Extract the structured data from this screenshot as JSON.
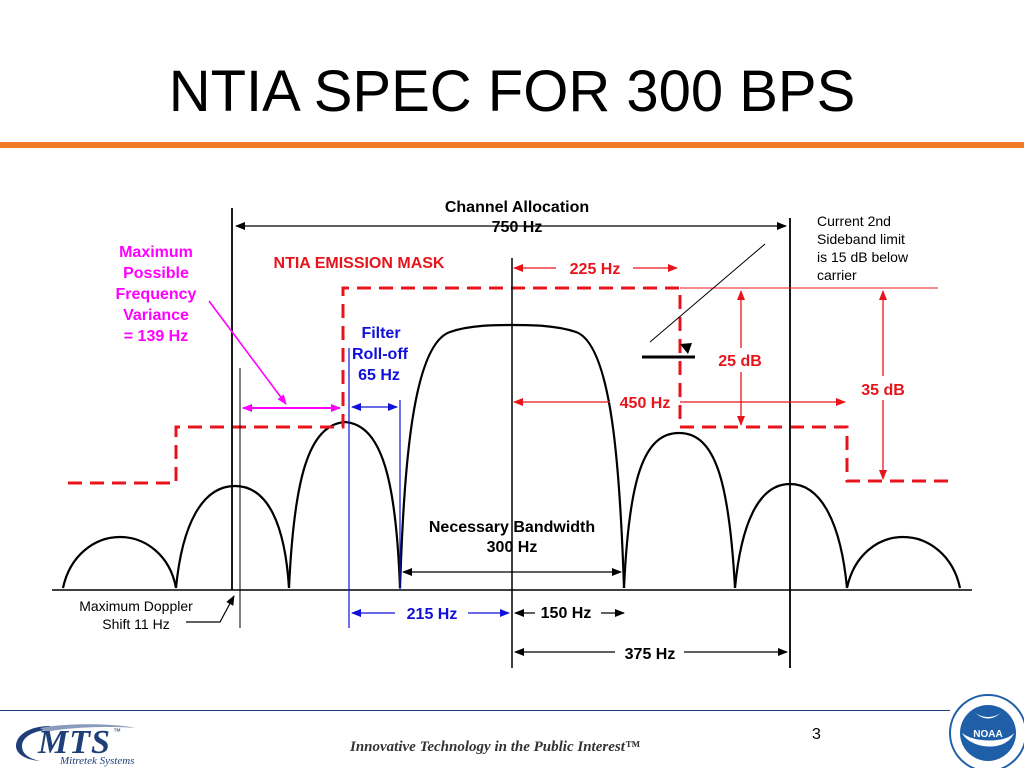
{
  "slide": {
    "title": "NTIA SPEC FOR 300 BPS",
    "page_number": "3",
    "tagline": "Innovative Technology in the Public Interest™",
    "logo_text": "MTS",
    "logo_tm": "™",
    "logo_subtitle": "Mitretek Systems",
    "seal_label": "NOAA"
  },
  "diagram": {
    "channel_allocation": {
      "line1": "Channel Allocation",
      "line2": "750 Hz"
    },
    "mask_label": "NTIA EMISSION MASK",
    "freq_variance": {
      "line1": "Maximum",
      "line2": "Possible",
      "line3": "Frequency",
      "line4": "Variance",
      "line5": "= 139 Hz"
    },
    "filter_rolloff": {
      "line1": "Filter",
      "line2": "Roll-off",
      "line3": "65 Hz"
    },
    "hz_225": "225 Hz",
    "hz_450": "450 Hz",
    "db_25": "25 dB",
    "db_35": "35 dB",
    "sideband_note": {
      "line1": "Current 2nd",
      "line2": "Sideband limit",
      "line3": "is 15 dB below",
      "line4": "carrier"
    },
    "necessary_bandwidth": {
      "line1": "Necessary Bandwidth",
      "line2": "300 Hz"
    },
    "doppler": {
      "line1": "Maximum Doppler",
      "line2": "Shift 11 Hz"
    },
    "hz_215": "215 Hz",
    "hz_150": "150 Hz",
    "hz_375": "375 Hz"
  },
  "colors": {
    "accent_orange": "#f07a28",
    "mask_red": "#e8141c",
    "variance_magenta": "#ff00ff",
    "filter_blue": "#1010d8",
    "brand_navy": "#1f3f78"
  }
}
